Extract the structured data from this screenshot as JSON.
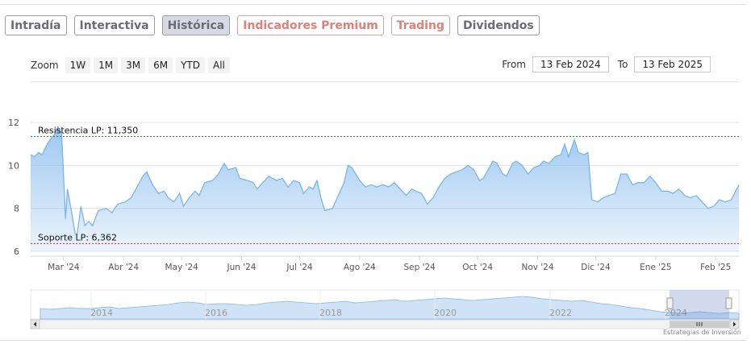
{
  "tabs": [
    {
      "label": "Intradía",
      "style": "normal"
    },
    {
      "label": "Interactiva",
      "style": "normal"
    },
    {
      "label": "Histórica",
      "style": "active"
    },
    {
      "label": "Indicadores Premium",
      "style": "premium"
    },
    {
      "label": "Trading",
      "style": "premium"
    },
    {
      "label": "Dividendos",
      "style": "normal"
    }
  ],
  "zoom": {
    "label": "Zoom",
    "options": [
      "1W",
      "1M",
      "3M",
      "6M",
      "YTD",
      "All"
    ]
  },
  "range": {
    "from_label": "From",
    "from_value": "13 Feb 2024",
    "to_label": "To",
    "to_value": "13 Feb 2025"
  },
  "credit": "Estrategias de Inversión",
  "colors": {
    "line": "#7cb5ec",
    "resistance": "#2e7d32",
    "support": "#d32f2f",
    "premium": "#e08079"
  },
  "chart_data": {
    "type": "area",
    "title": "",
    "xlabel": "",
    "ylabel": "",
    "ylim": [
      6,
      12
    ],
    "yticks": [
      "12",
      "10",
      "8",
      "6"
    ],
    "xlim": [
      "2024-02-13",
      "2025-02-13"
    ],
    "xticks": [
      {
        "date": "2024-03-01",
        "label": "Mar '24"
      },
      {
        "date": "2024-04-01",
        "label": "Abr '24"
      },
      {
        "date": "2024-05-01",
        "label": "May '24"
      },
      {
        "date": "2024-06-01",
        "label": "Jun '24"
      },
      {
        "date": "2024-07-01",
        "label": "Jul '24"
      },
      {
        "date": "2024-08-01",
        "label": "Ago '24"
      },
      {
        "date": "2024-09-01",
        "label": "Sep '24"
      },
      {
        "date": "2024-10-01",
        "label": "Oct '24"
      },
      {
        "date": "2024-11-01",
        "label": "Nov '24"
      },
      {
        "date": "2024-12-01",
        "label": "Dic '24"
      },
      {
        "date": "2025-01-01",
        "label": "Ene '25"
      },
      {
        "date": "2025-02-01",
        "label": "Feb '25"
      }
    ],
    "annotations": [
      {
        "label": "Resistencia LP: 11,350",
        "value": 11.35,
        "kind": "resistance"
      },
      {
        "label": "Soporte LP: 6,362",
        "value": 6.362,
        "kind": "support"
      }
    ],
    "series": [
      {
        "points": [
          [
            "2024-02-13",
            10.5
          ],
          [
            "2024-02-15",
            10.4
          ],
          [
            "2024-02-17",
            10.6
          ],
          [
            "2024-02-19",
            10.5
          ],
          [
            "2024-02-21",
            10.9
          ],
          [
            "2024-02-23",
            11.2
          ],
          [
            "2024-02-25",
            11.4
          ],
          [
            "2024-02-27",
            11.8
          ],
          [
            "2024-02-29",
            11.5
          ],
          [
            "2024-03-02",
            7.5
          ],
          [
            "2024-03-03",
            8.9
          ],
          [
            "2024-03-05",
            7.9
          ],
          [
            "2024-03-07",
            6.8
          ],
          [
            "2024-03-08",
            6.8
          ],
          [
            "2024-03-10",
            8.1
          ],
          [
            "2024-03-12",
            7.2
          ],
          [
            "2024-03-14",
            7.4
          ],
          [
            "2024-03-16",
            7.2
          ],
          [
            "2024-03-19",
            7.9
          ],
          [
            "2024-03-23",
            8.0
          ],
          [
            "2024-03-26",
            7.8
          ],
          [
            "2024-03-29",
            8.2
          ],
          [
            "2024-04-02",
            8.3
          ],
          [
            "2024-04-05",
            8.5
          ],
          [
            "2024-04-08",
            9.0
          ],
          [
            "2024-04-11",
            9.5
          ],
          [
            "2024-04-13",
            9.7
          ],
          [
            "2024-04-16",
            9.1
          ],
          [
            "2024-04-19",
            8.7
          ],
          [
            "2024-04-22",
            8.8
          ],
          [
            "2024-04-24",
            8.5
          ],
          [
            "2024-04-27",
            8.3
          ],
          [
            "2024-04-30",
            8.7
          ],
          [
            "2024-05-02",
            8.1
          ],
          [
            "2024-05-05",
            8.5
          ],
          [
            "2024-05-08",
            8.8
          ],
          [
            "2024-05-10",
            8.6
          ],
          [
            "2024-05-13",
            9.2
          ],
          [
            "2024-05-17",
            9.3
          ],
          [
            "2024-05-20",
            9.6
          ],
          [
            "2024-05-23",
            10.1
          ],
          [
            "2024-05-25",
            9.8
          ],
          [
            "2024-05-29",
            9.9
          ],
          [
            "2024-05-31",
            9.4
          ],
          [
            "2024-06-04",
            9.3
          ],
          [
            "2024-06-07",
            9.2
          ],
          [
            "2024-06-09",
            8.9
          ],
          [
            "2024-06-13",
            9.3
          ],
          [
            "2024-06-15",
            9.5
          ],
          [
            "2024-06-19",
            9.3
          ],
          [
            "2024-06-22",
            9.4
          ],
          [
            "2024-06-25",
            9.0
          ],
          [
            "2024-06-28",
            9.3
          ],
          [
            "2024-07-01",
            9.2
          ],
          [
            "2024-07-03",
            8.7
          ],
          [
            "2024-07-06",
            9.0
          ],
          [
            "2024-07-08",
            8.9
          ],
          [
            "2024-07-10",
            9.3
          ],
          [
            "2024-07-12",
            8.5
          ],
          [
            "2024-07-14",
            7.9
          ],
          [
            "2024-07-18",
            8.0
          ],
          [
            "2024-07-21",
            8.6
          ],
          [
            "2024-07-24",
            9.2
          ],
          [
            "2024-07-26",
            10.0
          ],
          [
            "2024-07-28",
            9.9
          ],
          [
            "2024-08-01",
            9.3
          ],
          [
            "2024-08-04",
            9.0
          ],
          [
            "2024-08-07",
            9.1
          ],
          [
            "2024-08-10",
            9.0
          ],
          [
            "2024-08-13",
            9.1
          ],
          [
            "2024-08-16",
            9.0
          ],
          [
            "2024-08-19",
            9.2
          ],
          [
            "2024-08-22",
            8.9
          ],
          [
            "2024-08-25",
            8.6
          ],
          [
            "2024-08-28",
            8.9
          ],
          [
            "2024-08-30",
            8.8
          ],
          [
            "2024-09-02",
            8.7
          ],
          [
            "2024-09-05",
            8.2
          ],
          [
            "2024-09-08",
            8.5
          ],
          [
            "2024-09-11",
            9.0
          ],
          [
            "2024-09-14",
            9.4
          ],
          [
            "2024-09-17",
            9.6
          ],
          [
            "2024-09-20",
            9.7
          ],
          [
            "2024-09-23",
            9.8
          ],
          [
            "2024-09-26",
            10.0
          ],
          [
            "2024-09-29",
            9.8
          ],
          [
            "2024-10-02",
            9.3
          ],
          [
            "2024-10-04",
            9.4
          ],
          [
            "2024-10-07",
            9.9
          ],
          [
            "2024-10-09",
            10.2
          ],
          [
            "2024-10-11",
            10.1
          ],
          [
            "2024-10-14",
            9.6
          ],
          [
            "2024-10-16",
            9.5
          ],
          [
            "2024-10-19",
            10.1
          ],
          [
            "2024-10-21",
            10.2
          ],
          [
            "2024-10-24",
            10.0
          ],
          [
            "2024-10-27",
            9.6
          ],
          [
            "2024-10-30",
            9.9
          ],
          [
            "2024-11-02",
            10.0
          ],
          [
            "2024-11-04",
            10.2
          ],
          [
            "2024-11-07",
            10.1
          ],
          [
            "2024-11-10",
            10.4
          ],
          [
            "2024-11-13",
            10.5
          ],
          [
            "2024-11-15",
            11.0
          ],
          [
            "2024-11-17",
            10.4
          ],
          [
            "2024-11-20",
            11.2
          ],
          [
            "2024-11-22",
            10.6
          ],
          [
            "2024-11-25",
            10.5
          ],
          [
            "2024-11-27",
            10.6
          ],
          [
            "2024-11-29",
            8.4
          ],
          [
            "2024-12-02",
            8.3
          ],
          [
            "2024-12-05",
            8.5
          ],
          [
            "2024-12-08",
            8.6
          ],
          [
            "2024-12-11",
            8.7
          ],
          [
            "2024-12-14",
            9.6
          ],
          [
            "2024-12-17",
            9.6
          ],
          [
            "2024-12-20",
            9.1
          ],
          [
            "2024-12-23",
            9.2
          ],
          [
            "2024-12-26",
            9.2
          ],
          [
            "2024-12-29",
            9.5
          ],
          [
            "2025-01-01",
            9.2
          ],
          [
            "2025-01-04",
            8.8
          ],
          [
            "2025-01-07",
            8.8
          ],
          [
            "2025-01-10",
            8.7
          ],
          [
            "2025-01-13",
            8.9
          ],
          [
            "2025-01-16",
            8.6
          ],
          [
            "2025-01-19",
            8.5
          ],
          [
            "2025-01-22",
            8.6
          ],
          [
            "2025-01-25",
            8.3
          ],
          [
            "2025-01-28",
            8.0
          ],
          [
            "2025-01-31",
            8.1
          ],
          [
            "2025-02-03",
            8.4
          ],
          [
            "2025-02-06",
            8.3
          ],
          [
            "2025-02-09",
            8.4
          ],
          [
            "2025-02-13",
            9.1
          ]
        ]
      }
    ]
  },
  "navigator": {
    "labels": [
      "2014",
      "2016",
      "2018",
      "2020",
      "2022",
      "2024"
    ]
  }
}
